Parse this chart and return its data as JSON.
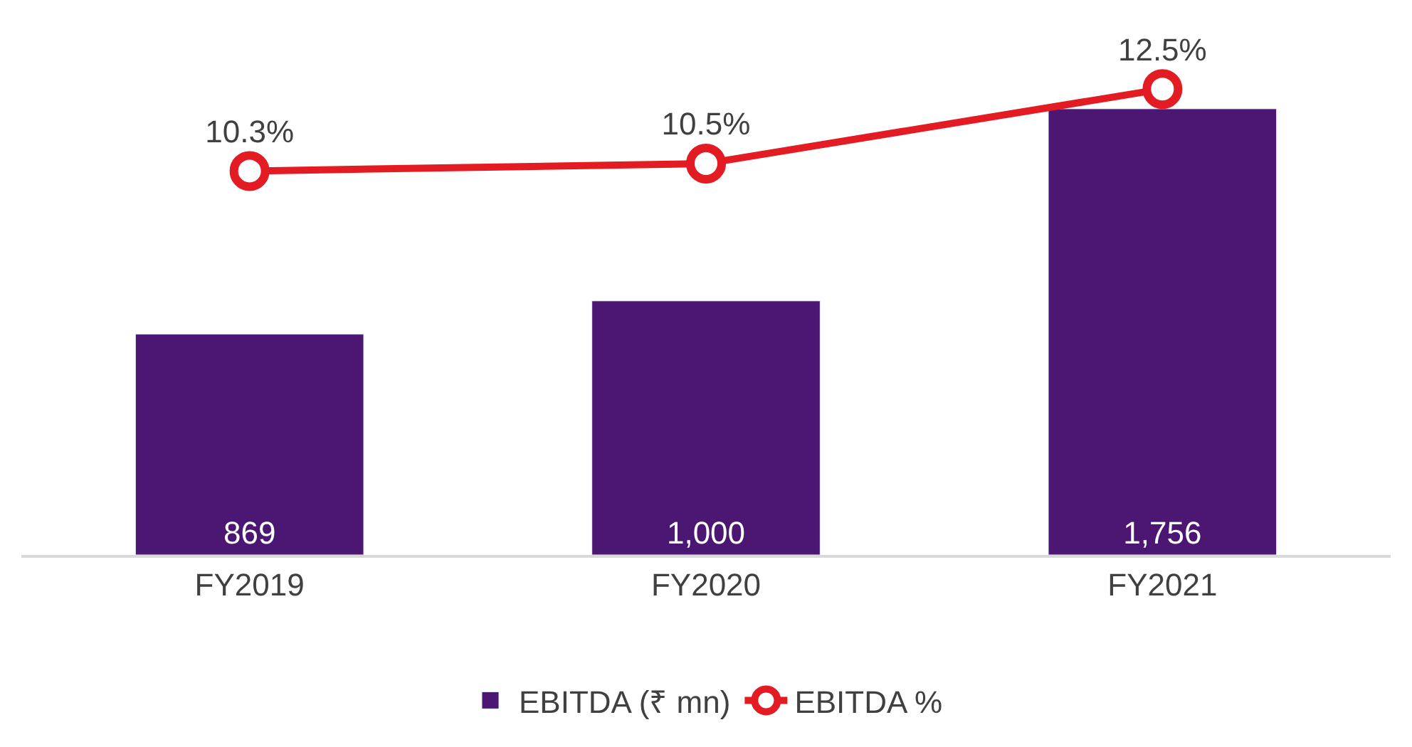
{
  "chart_data": {
    "type": "bar",
    "categories": [
      "FY2019",
      "FY2020",
      "FY2021"
    ],
    "series": [
      {
        "name": "EBITDA (₹ mn)",
        "color": "#4b1772",
        "values": [
          869,
          1000,
          1756
        ],
        "value_labels": [
          "869",
          "1,000",
          "1,756"
        ]
      },
      {
        "name": "EBITDA %",
        "type": "line",
        "axis": "y2",
        "color": "#e31b23",
        "values": [
          10.3,
          10.5,
          12.5
        ],
        "value_labels": [
          "10.3%",
          "10.5%",
          "12.5%"
        ]
      }
    ],
    "legend": "bottom",
    "marker": "circle",
    "line_style": "solid",
    "tick_labels": "x"
  }
}
